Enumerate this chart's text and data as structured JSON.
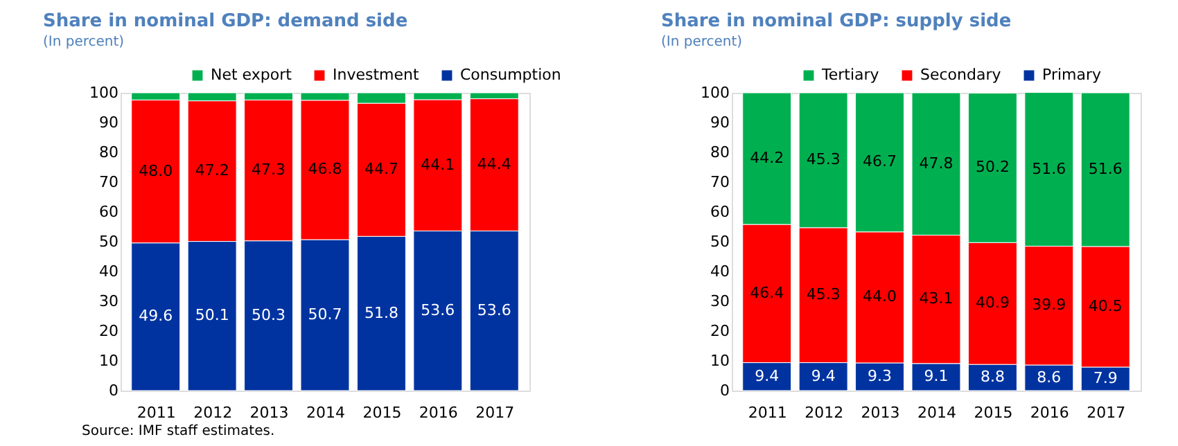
{
  "chart_data": [
    {
      "type": "bar",
      "title": "Share in nominal GDP: demand side",
      "subtitle": "(In percent)",
      "stacked": true,
      "legend": "top right",
      "grid": false,
      "categories": [
        "2011",
        "2012",
        "2013",
        "2014",
        "2015",
        "2016",
        "2017"
      ],
      "ylim": [
        0,
        100
      ],
      "yticks": [
        0,
        10,
        20,
        30,
        40,
        50,
        60,
        70,
        80,
        90,
        100
      ],
      "series": [
        {
          "name": "Consumption",
          "color": "#0033a0",
          "values": [
            49.6,
            50.1,
            50.3,
            50.7,
            51.8,
            53.6,
            53.6
          ],
          "value_labels": [
            "49.6",
            "50.1",
            "50.3",
            "50.7",
            "51.8",
            "53.6",
            "53.6"
          ]
        },
        {
          "name": "Investment",
          "color": "#ff0000",
          "values": [
            48.0,
            47.2,
            47.3,
            46.8,
            44.7,
            44.1,
            44.4
          ],
          "value_labels": [
            "48.0",
            "47.2",
            "47.3",
            "46.8",
            "44.7",
            "44.1",
            "44.4"
          ]
        },
        {
          "name": "Net export",
          "color": "#00b050",
          "values": [
            2.4,
            2.7,
            2.4,
            2.5,
            3.5,
            2.3,
            2.0
          ]
        }
      ],
      "annotations": [
        "Source: IMF staff estimates."
      ]
    },
    {
      "type": "bar",
      "title": "Share in nominal GDP: supply side",
      "subtitle": "(In percent)",
      "stacked": true,
      "legend": "top right",
      "grid": false,
      "categories": [
        "2011",
        "2012",
        "2013",
        "2014",
        "2015",
        "2016",
        "2017"
      ],
      "ylim": [
        0,
        100
      ],
      "yticks": [
        0,
        10,
        20,
        30,
        40,
        50,
        60,
        70,
        80,
        90,
        100
      ],
      "series": [
        {
          "name": "Primary",
          "color": "#0033a0",
          "values": [
            9.4,
            9.4,
            9.3,
            9.1,
            8.8,
            8.6,
            7.9
          ],
          "value_labels": [
            "9.4",
            "9.4",
            "9.3",
            "9.1",
            "8.8",
            "8.6",
            "7.9"
          ]
        },
        {
          "name": "Secondary",
          "color": "#ff0000",
          "values": [
            46.4,
            45.3,
            44.0,
            43.1,
            40.9,
            39.9,
            40.5
          ],
          "value_labels": [
            "46.4",
            "45.3",
            "44.0",
            "43.1",
            "40.9",
            "39.9",
            "40.5"
          ]
        },
        {
          "name": "Tertiary",
          "color": "#00b050",
          "values": [
            44.2,
            45.3,
            46.7,
            47.8,
            50.2,
            51.6,
            51.6
          ],
          "value_labels": [
            "44.2",
            "45.3",
            "46.7",
            "47.8",
            "50.2",
            "51.6",
            "51.6"
          ]
        }
      ]
    }
  ]
}
